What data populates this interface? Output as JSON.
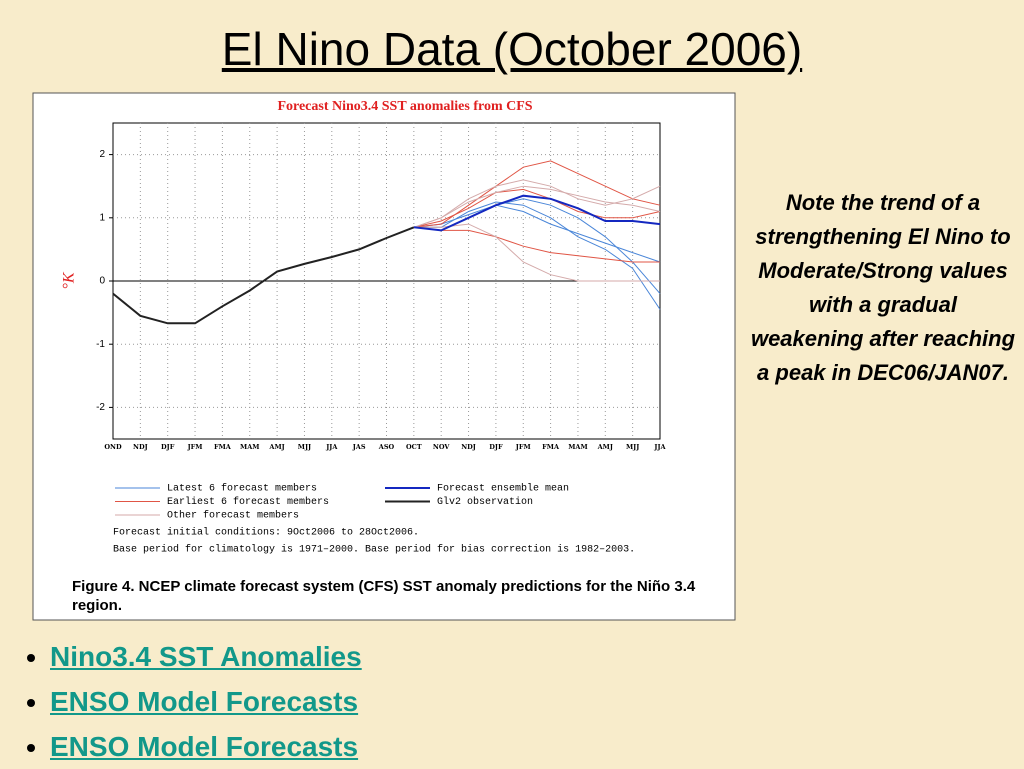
{
  "slide": {
    "title": "El Nino Data  (October 2006)",
    "note": "Note the trend of a strengthening El Nino to Moderate/Strong values with a gradual weakening after reaching a peak in DEC06/JAN07.",
    "links": [
      "Nino3.4 SST Anomalies",
      "ENSO Model Forecasts",
      "ENSO Model Forecasts"
    ]
  },
  "chart_data": {
    "type": "line",
    "title": "Forecast Nino3.4 SST anomalies from CFS",
    "y_label": "°K",
    "categories": [
      "OND",
      "NDJ",
      "DJF",
      "JFM",
      "FMA",
      "MAM",
      "AMJ",
      "MJJ",
      "JJA",
      "JAS",
      "ASO",
      "OCT",
      "NOV",
      "NDJ",
      "DJF",
      "JFM",
      "FMA",
      "MAM",
      "AMJ",
      "MJJ",
      "JJA"
    ],
    "ylim": [
      -2.5,
      2.5
    ],
    "yticks": [
      -2,
      -1,
      0,
      1,
      2
    ],
    "grid": true,
    "series": [
      {
        "name": "Latest 6 forecast members",
        "color": "#4a86d8",
        "members": [
          [
            null,
            null,
            null,
            null,
            null,
            null,
            null,
            null,
            null,
            null,
            null,
            0.85,
            0.8,
            1.0,
            1.2,
            1.3,
            1.2,
            1.0,
            0.7,
            0.3,
            -0.2
          ],
          [
            null,
            null,
            null,
            null,
            null,
            null,
            null,
            null,
            null,
            null,
            null,
            0.85,
            0.85,
            1.1,
            1.25,
            1.2,
            1.0,
            0.7,
            0.5,
            0.2,
            -0.45
          ],
          [
            null,
            null,
            null,
            null,
            null,
            null,
            null,
            null,
            null,
            null,
            null,
            0.85,
            0.9,
            1.05,
            1.2,
            1.1,
            0.9,
            0.75,
            0.6,
            0.45,
            0.3
          ]
        ]
      },
      {
        "name": "Earliest 6 forecast members",
        "color": "#e05545",
        "members": [
          [
            null,
            null,
            null,
            null,
            null,
            null,
            null,
            null,
            null,
            null,
            null,
            0.85,
            0.9,
            1.2,
            1.5,
            1.8,
            1.9,
            1.7,
            1.5,
            1.3,
            1.2
          ],
          [
            null,
            null,
            null,
            null,
            null,
            null,
            null,
            null,
            null,
            null,
            null,
            0.85,
            0.95,
            1.15,
            1.4,
            1.45,
            1.3,
            1.1,
            1.0,
            1.0,
            1.1
          ],
          [
            null,
            null,
            null,
            null,
            null,
            null,
            null,
            null,
            null,
            null,
            null,
            0.85,
            0.8,
            0.8,
            0.7,
            0.55,
            0.45,
            0.4,
            0.35,
            0.3,
            0.3
          ]
        ]
      },
      {
        "name": "Other forecast members",
        "color": "#d4aaaa",
        "members": [
          [
            null,
            null,
            null,
            null,
            null,
            null,
            null,
            null,
            null,
            null,
            null,
            0.85,
            1.0,
            1.3,
            1.5,
            1.6,
            1.5,
            1.3,
            1.2,
            1.3,
            1.5
          ],
          [
            null,
            null,
            null,
            null,
            null,
            null,
            null,
            null,
            null,
            null,
            null,
            0.85,
            0.85,
            0.9,
            0.7,
            0.3,
            0.1,
            0.0,
            0.0,
            0.0,
            0.0
          ],
          [
            null,
            null,
            null,
            null,
            null,
            null,
            null,
            null,
            null,
            null,
            null,
            0.85,
            1.0,
            1.25,
            1.4,
            1.5,
            1.45,
            1.35,
            1.25,
            1.2,
            1.1
          ]
        ]
      },
      {
        "name": "Forecast ensemble mean",
        "color": "#1428c0",
        "values": [
          null,
          null,
          null,
          null,
          null,
          null,
          null,
          null,
          null,
          null,
          null,
          0.85,
          0.8,
          1.0,
          1.2,
          1.35,
          1.3,
          1.15,
          0.95,
          0.95,
          0.9
        ]
      },
      {
        "name": "Glv2 observation",
        "color": "#222222",
        "values": [
          -0.2,
          -0.55,
          -0.67,
          -0.67,
          -0.4,
          -0.15,
          0.15,
          0.27,
          0.38,
          0.5,
          0.68,
          0.85,
          null,
          null,
          null,
          null,
          null,
          null,
          null,
          null,
          null
        ]
      }
    ],
    "notes": [
      "Forecast initial conditions: 9Oct2006 to 28Oct2006.",
      "Base period for climatology is 1971–2000. Base period for bias correction is 1982–2003."
    ],
    "caption": "Figure 4. NCEP climate forecast system (CFS) SST anomaly predictions for the Niño 3.4 region."
  }
}
